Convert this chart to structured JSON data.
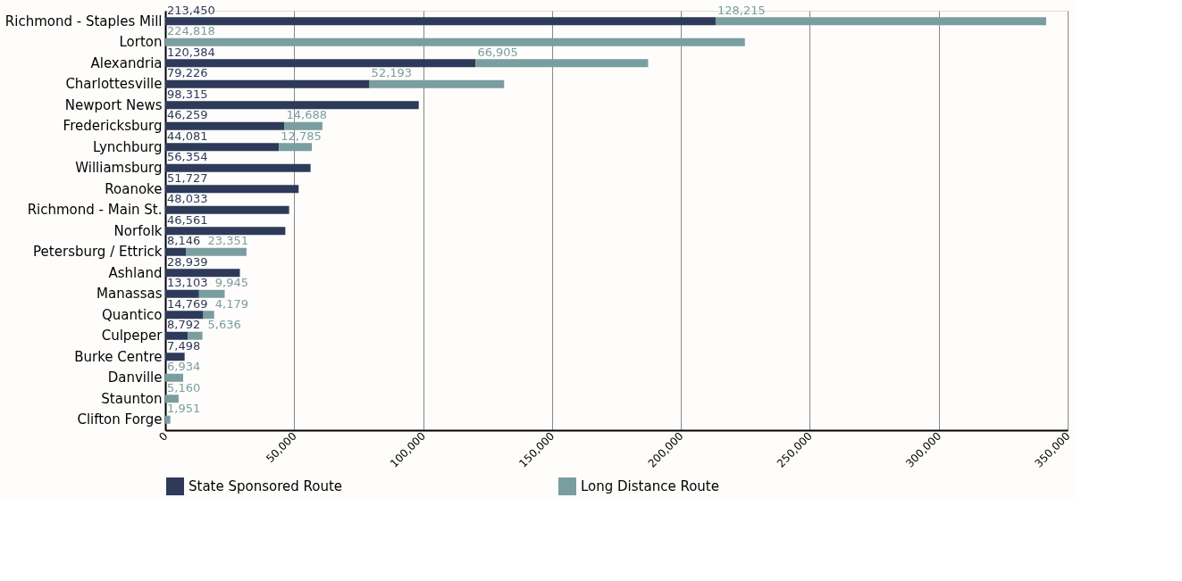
{
  "chart_data": {
    "type": "bar",
    "orientation": "horizontal",
    "stacked": true,
    "categories": [
      "Richmond - Staples Mill",
      "Lorton",
      "Alexandria",
      "Charlottesville",
      "Newport News",
      "Fredericksburg",
      "Lynchburg",
      "Williamsburg",
      "Roanoke",
      "Richmond - Main St.",
      "Norfolk",
      "Petersburg / Ettrick",
      "Ashland",
      "Manassas",
      "Quantico",
      "Culpeper",
      "Burke Centre",
      "Danville",
      "Staunton",
      "Clifton Forge"
    ],
    "series": [
      {
        "name": "State Sponsored Route",
        "color": "#2e3a59",
        "values": [
          213450,
          null,
          120384,
          79226,
          98315,
          46259,
          44081,
          56354,
          51727,
          48033,
          46561,
          8146,
          28939,
          13103,
          14769,
          8792,
          7498,
          null,
          null,
          null
        ],
        "value_labels": [
          "213,450",
          null,
          "120,384",
          "79,226",
          "98,315",
          "46,259",
          "44,081",
          "56,354",
          "51,727",
          "48,033",
          "46,561",
          "8,146",
          "28,939",
          "13,103",
          "14,769",
          "8,792",
          "7,498",
          null,
          null,
          null
        ]
      },
      {
        "name": "Long Distance Route",
        "color": "#7a9e9f",
        "values": [
          128215,
          224818,
          66905,
          52193,
          null,
          14688,
          12785,
          null,
          null,
          null,
          null,
          23351,
          null,
          9945,
          4179,
          5636,
          null,
          6934,
          5160,
          1951
        ],
        "value_labels": [
          "128,215",
          "224,818",
          "66,905",
          "52,193",
          null,
          "14,688",
          "12,785",
          null,
          null,
          null,
          null,
          "23,351",
          null,
          "9,945",
          "4,179",
          "5,636",
          null,
          "6,934",
          "5,160",
          "1,951"
        ]
      }
    ],
    "xlim": [
      0,
      350000
    ],
    "xticks": [
      0,
      {
        "value": 50000,
        "label": "50,000"
      },
      {
        "value": 100000,
        "label": "100,000"
      },
      {
        "value": 150000,
        "label": "150,000"
      },
      {
        "value": 200000,
        "label": "200,000"
      },
      {
        "value": 250000,
        "label": "250,000"
      },
      {
        "value": 300000,
        "label": "300,000"
      },
      {
        "value": 350000,
        "label": "350,000"
      }
    ],
    "grid": "x",
    "legend": "bottom"
  }
}
